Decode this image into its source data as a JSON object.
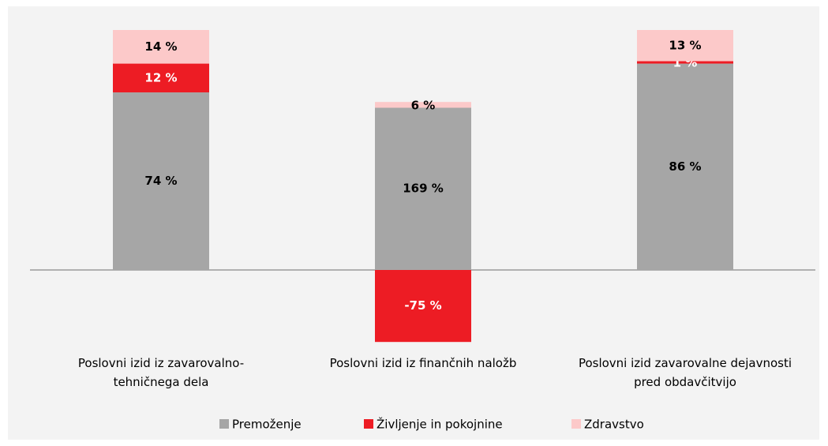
{
  "chart_data": {
    "type": "stacked_bar",
    "categories": [
      "Poslovni izid iz zavarovalno-\ntehničnega dela",
      "Poslovni izid iz finančnih naložb",
      "Poslovni izid zavarovalne dejavnosti\npred obdavčitvijo"
    ],
    "series": [
      {
        "name": "Premoženje",
        "color": "#a6a6a6",
        "label_color": "#000000",
        "values": [
          74,
          169,
          86
        ],
        "value_labels": [
          "74 %",
          "169 %",
          "86 %"
        ]
      },
      {
        "name": "Življenje in pokojnine",
        "color": "#ed1c24",
        "label_color": "#ffffff",
        "values": [
          12,
          -75,
          1
        ],
        "value_labels": [
          "12 %",
          "-75 %",
          "1 %"
        ]
      },
      {
        "name": "Zdravstvo",
        "color": "#fcc9c9",
        "label_color": "#000000",
        "values": [
          14,
          6,
          13
        ],
        "value_labels": [
          "14 %",
          "6 %",
          "13 %"
        ]
      }
    ],
    "legend": "bottom"
  }
}
